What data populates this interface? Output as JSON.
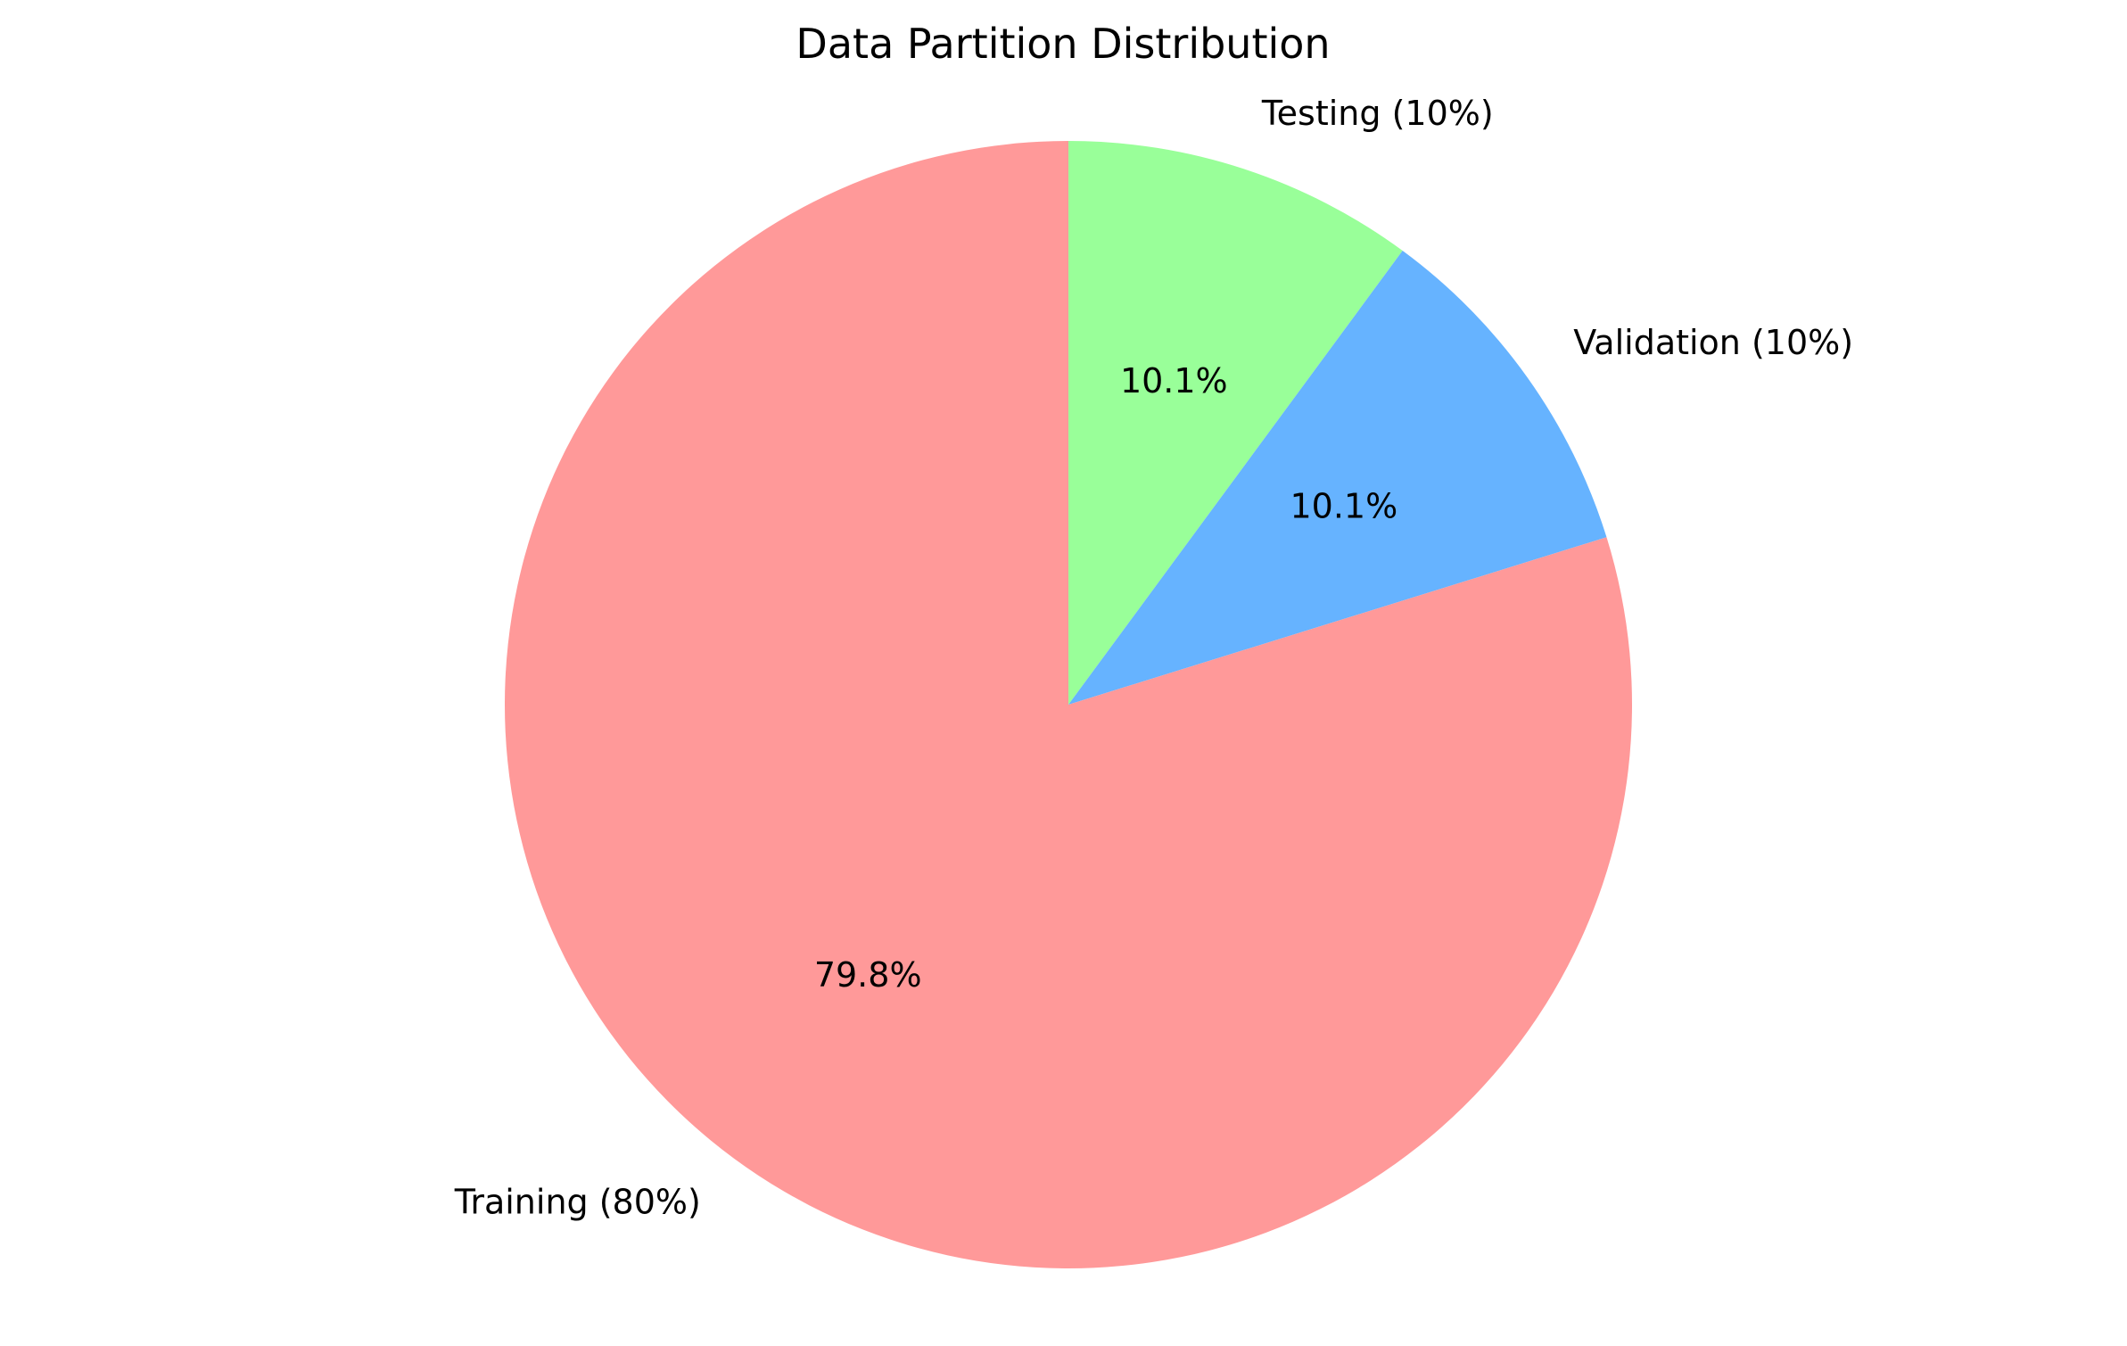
{
  "chart_data": {
    "type": "pie",
    "title": "Data Partition Distribution",
    "start_angle_deg": 90,
    "direction": "clockwise",
    "slices": [
      {
        "label": "Testing (10%)",
        "value": 10.1,
        "pct_label": "10.1%",
        "color": "#99ff99"
      },
      {
        "label": "Validation (10%)",
        "value": 10.1,
        "pct_label": "10.1%",
        "color": "#66b3ff"
      },
      {
        "label": "Training (80%)",
        "value": 79.8,
        "pct_label": "79.8%",
        "color": "#ff9999"
      }
    ]
  }
}
